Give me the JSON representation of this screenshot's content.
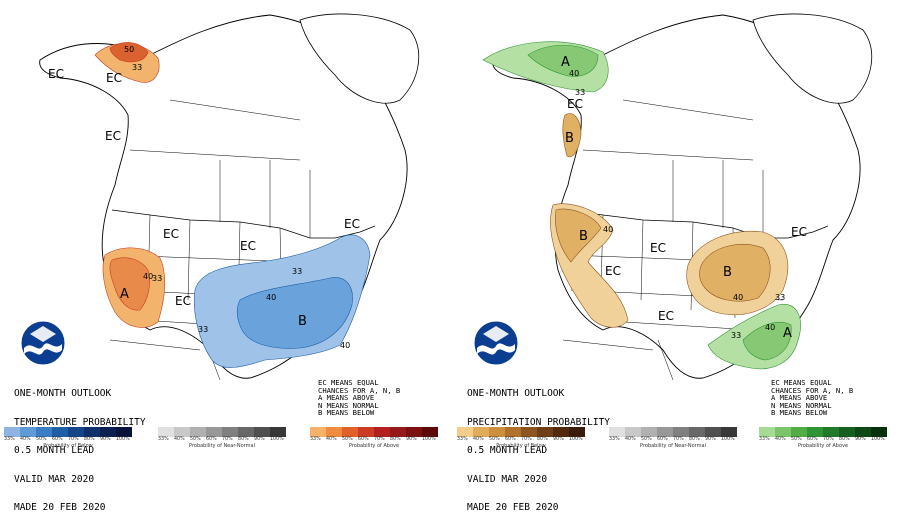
{
  "panels": [
    {
      "id": "temperature",
      "title_lines": [
        "ONE-MONTH OUTLOOK",
        "TEMPERATURE PROBABILITY",
        "0.5 MONTH LEAD",
        "VALID MAR 2020",
        "MADE 20 FEB 2020"
      ],
      "map_labels": {
        "ec1": "EC",
        "ec2": "EC",
        "ec3": "EC",
        "ec4": "EC",
        "ec5": "EC",
        "ec6": "EC",
        "ec7": "EC",
        "a": "A",
        "b": "B",
        "c40a": "40",
        "c33a": "33",
        "c50": "50",
        "c33b": "33",
        "c40b": "40",
        "c33c": "33",
        "c33d": "33",
        "c40c": "40"
      }
    },
    {
      "id": "precipitation",
      "title_lines": [
        "ONE-MONTH OUTLOOK",
        "PRECIPITATION PROBABILITY",
        "0.5 MONTH LEAD",
        "VALID MAR 2020",
        "MADE 20 FEB 2020"
      ],
      "map_labels": {
        "ec1": "EC",
        "ec2": "EC",
        "ec3": "EC",
        "ec4": "EC",
        "ec5": "EC",
        "a1": "A",
        "a2": "A",
        "b1": "B",
        "b2": "B",
        "b3": "B",
        "c40a": "40",
        "c33a": "33",
        "c40b": "40",
        "c40c": "40",
        "c33b": "33",
        "c40d": "40",
        "c33c": "33"
      }
    }
  ],
  "legend_note": [
    "EC MEANS EQUAL",
    "CHANCES FOR A, N, B",
    "A MEANS ABOVE",
    "N MEANS NORMAL",
    "B MEANS BELOW"
  ],
  "scales": {
    "ticks": [
      "33%",
      "40%",
      "50%",
      "60%",
      "70%",
      "80%",
      "90%",
      "100%"
    ],
    "below": {
      "label": "Probability of Below",
      "colors": [
        "#8db4e2",
        "#5f9ad6",
        "#3a7dc4",
        "#1f5fa8",
        "#16458a",
        "#10306b",
        "#0b2050",
        "#06123a"
      ]
    },
    "near_normal": {
      "label": "Probability of Near-Normal",
      "colors": [
        "#e0e0e0",
        "#c8c8c8",
        "#b0b0b0",
        "#989898",
        "#808080",
        "#686868",
        "#505050",
        "#383838"
      ]
    },
    "above_temp": {
      "label": "Probability of Above",
      "colors": [
        "#f6b26b",
        "#f08a3c",
        "#e0612a",
        "#cc3b24",
        "#b3201f",
        "#961818",
        "#7a1010",
        "#5c0808"
      ]
    },
    "below_precip": {
      "label": "Probability of Below",
      "colors": [
        "#f2ce8a",
        "#e0ac5c",
        "#cc8f3e",
        "#b0712a",
        "#8f5520",
        "#6f3e16",
        "#53290e",
        "#3a1a08"
      ]
    },
    "above_precip": {
      "label": "Probability of Above",
      "colors": [
        "#a6d995",
        "#7cc46a",
        "#52ad47",
        "#2f9433",
        "#1f7a29",
        "#16601f",
        "#0e4816",
        "#07300d"
      ]
    }
  },
  "colors": {
    "temp_below_33": "#9fc2e8",
    "temp_below_40": "#6aa3db",
    "temp_above_33": "#f2b46c",
    "temp_above_40": "#e88a4a",
    "temp_above_50": "#d9622e",
    "precip_below_33": "#f1d19a",
    "precip_below_40": "#e0b064",
    "precip_above_33": "#b5e0a4",
    "precip_above_40": "#86c873"
  },
  "icons": {
    "logo": "noaa-logo-icon"
  }
}
